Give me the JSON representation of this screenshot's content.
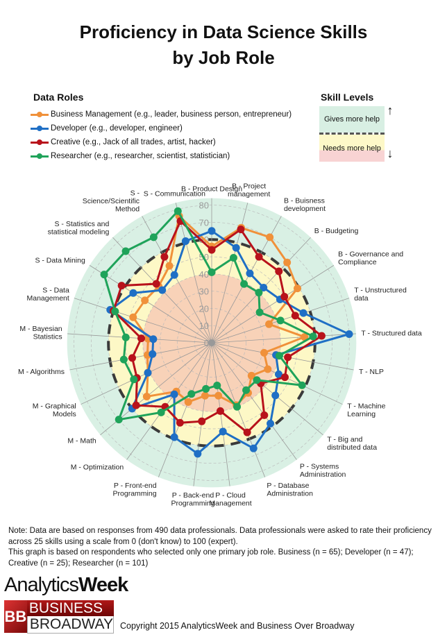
{
  "title_lines": [
    "Proficiency in Data Science Skills",
    "by Job Role"
  ],
  "legend": {
    "heading": "Data Roles",
    "items": [
      {
        "label": "Business Management (e.g., leader, business person, entrepreneur)",
        "color": "#f0913a"
      },
      {
        "label": "Developer (e.g., developer, engineer)",
        "color": "#1f6fc5"
      },
      {
        "label": "Creative (e.g., Jack of all trades, artist, hacker)",
        "color": "#b8121b"
      },
      {
        "label": "Researcher (e.g., researcher, scientist, statistician)",
        "color": "#1fa35a"
      }
    ]
  },
  "skill_levels": {
    "heading": "Skill Levels",
    "upper": "Gives more help",
    "lower": "Needs more help",
    "up_arrow": "↑",
    "down_arrow": "↓"
  },
  "chart_data": {
    "type": "radar",
    "rmax": 80,
    "ticks": [
      "0",
      "10",
      "20",
      "30",
      "40",
      "50",
      "60",
      "70",
      "80"
    ],
    "axes": [
      [
        "B - Product Design"
      ],
      [
        "B - Project",
        "management"
      ],
      [
        "B - Buisness",
        "development"
      ],
      [
        "B - Budgeting"
      ],
      [
        "B - Governance and",
        "Compliance"
      ],
      [
        "T - Unstructured",
        "data"
      ],
      [
        "T - Structured data"
      ],
      [
        "T - NLP"
      ],
      [
        "T - Machine",
        "Learning"
      ],
      [
        "T - Big and",
        "distributed data"
      ],
      [
        "P - Systems",
        "Administration"
      ],
      [
        "P - Database",
        "Administration"
      ],
      [
        "P - Cloud",
        "Management"
      ],
      [
        "P - Back-end",
        "Programming"
      ],
      [
        "P - Front-end",
        "Programming"
      ],
      [
        "M - Optimization"
      ],
      [
        "M - Math"
      ],
      [
        "M - Graphical",
        "Models"
      ],
      [
        "M - Algorithms"
      ],
      [
        "M - Bayesian",
        "Statistics"
      ],
      [
        "S - Data",
        "Management"
      ],
      [
        "S - Data Mining"
      ],
      [
        "S - Statistics and",
        "statistical modeling"
      ],
      [
        "S -",
        "Science/Scientific",
        "Method"
      ],
      [
        "S - Communication"
      ]
    ],
    "threshold": 60,
    "bands": {
      "outer": 84,
      "mid": 60,
      "inner": 40
    },
    "series": [
      {
        "name": "Business Management",
        "color": "#f0913a",
        "values": [
          56,
          69,
          70,
          64,
          59,
          35,
          54,
          31,
          36,
          30,
          36,
          39,
          31,
          31,
          37,
          35,
          49,
          41,
          38,
          37,
          48,
          46,
          45,
          51,
          76
        ]
      },
      {
        "name": "Developer",
        "color": "#1f6fc5",
        "values": [
          65,
          57,
          46,
          44,
          47,
          56,
          80,
          38,
          43,
          48,
          58,
          66,
          52,
          65,
          59,
          37,
          60,
          41,
          35,
          34,
          62,
          54,
          42,
          45,
          61
        ]
      },
      {
        "name": "Creative",
        "color": "#b8121b",
        "values": [
          54,
          68,
          57,
          57,
          50,
          51,
          64,
          45,
          47,
          37,
          52,
          56,
          40,
          46,
          50,
          46,
          57,
          48,
          47,
          41,
          60,
          62,
          47,
          57,
          73
        ]
      },
      {
        "name": "Researcher",
        "color": "#1fa35a",
        "values": [
          41,
          51,
          39,
          40,
          33,
          42,
          59,
          40,
          58,
          34,
          34,
          40,
          25,
          27,
          32,
          50,
          70,
          50,
          52,
          50,
          59,
          74,
          73,
          70,
          79
        ]
      }
    ]
  },
  "note_lines": [
    "Note: Data are based on responses from 490 data professionals. Data professionals were asked to rate their proficiency across 25 skills using a scale from 0 (don't know) to 100 (expert).",
    "This graph is based on respondents who selected only one primary job role. Business (n = 65); Developer (n = 47); Creative (n = 25); Researcher (n = 101)"
  ],
  "logos": {
    "analyticsweek_a": "Analytics",
    "analyticsweek_b": "Week",
    "bb_mark": "BB",
    "bb_line1": "BUSINESS",
    "bb_line2": "BROADWAY"
  },
  "copyright": "Copyright 2015 AnalyticsWeek and Business Over Broadway"
}
